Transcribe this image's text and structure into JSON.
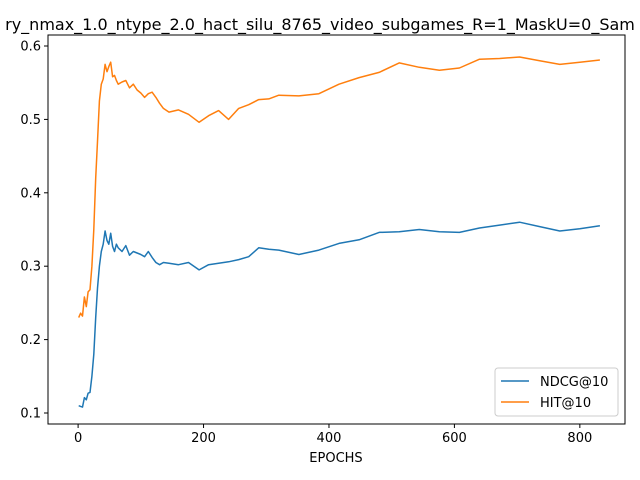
{
  "chart_data": {
    "type": "line",
    "title": "ry_nmax_1.0_ntype_2.0_hact_silu_8765_video_subgames_R=1_MaskU=0_Sam",
    "xlabel": "EPOCHS",
    "ylabel": "",
    "xlim": [
      -48,
      872
    ],
    "ylim": [
      0.085,
      0.615
    ],
    "xticks": [
      0,
      200,
      400,
      600,
      800
    ],
    "yticks": [
      0.1,
      0.2,
      0.3,
      0.4,
      0.5,
      0.6
    ],
    "grid": false,
    "legend_position": "lower-right",
    "series": [
      {
        "name": "NDCG@10",
        "color": "#1f77b4",
        "x": [
          1,
          4,
          7,
          10,
          13,
          16,
          19,
          22,
          25,
          28,
          31,
          34,
          37,
          40,
          43,
          46,
          49,
          52,
          55,
          58,
          61,
          64,
          70,
          76,
          82,
          88,
          94,
          100,
          106,
          112,
          118,
          124,
          130,
          136,
          145,
          160,
          176,
          193,
          208,
          224,
          240,
          256,
          272,
          288,
          304,
          320,
          352,
          384,
          416,
          448,
          480,
          512,
          544,
          576,
          608,
          640,
          672,
          704,
          736,
          768,
          800,
          832
        ],
        "y": [
          0.11,
          0.109,
          0.108,
          0.121,
          0.118,
          0.127,
          0.128,
          0.15,
          0.18,
          0.23,
          0.27,
          0.3,
          0.32,
          0.33,
          0.348,
          0.335,
          0.33,
          0.345,
          0.327,
          0.32,
          0.33,
          0.325,
          0.32,
          0.328,
          0.315,
          0.32,
          0.318,
          0.316,
          0.313,
          0.32,
          0.312,
          0.305,
          0.302,
          0.305,
          0.304,
          0.302,
          0.305,
          0.295,
          0.302,
          0.304,
          0.306,
          0.309,
          0.313,
          0.325,
          0.323,
          0.322,
          0.316,
          0.322,
          0.331,
          0.336,
          0.346,
          0.347,
          0.35,
          0.347,
          0.346,
          0.352,
          0.356,
          0.36,
          0.354,
          0.348,
          0.351,
          0.355
        ]
      },
      {
        "name": "HIT@10",
        "color": "#ff7f0e",
        "x": [
          1,
          4,
          7,
          10,
          13,
          16,
          19,
          22,
          25,
          28,
          31,
          34,
          37,
          40,
          43,
          46,
          49,
          52,
          55,
          58,
          61,
          64,
          70,
          76,
          82,
          88,
          94,
          100,
          106,
          112,
          118,
          124,
          130,
          136,
          145,
          160,
          176,
          193,
          208,
          224,
          240,
          256,
          272,
          288,
          304,
          320,
          352,
          384,
          416,
          448,
          480,
          512,
          544,
          576,
          608,
          640,
          672,
          704,
          736,
          768,
          800,
          832
        ],
        "y": [
          0.23,
          0.236,
          0.232,
          0.258,
          0.245,
          0.265,
          0.268,
          0.3,
          0.35,
          0.42,
          0.47,
          0.525,
          0.548,
          0.555,
          0.575,
          0.565,
          0.572,
          0.578,
          0.558,
          0.56,
          0.553,
          0.548,
          0.551,
          0.553,
          0.543,
          0.548,
          0.54,
          0.536,
          0.53,
          0.535,
          0.537,
          0.53,
          0.522,
          0.515,
          0.51,
          0.513,
          0.507,
          0.496,
          0.505,
          0.512,
          0.5,
          0.515,
          0.52,
          0.527,
          0.528,
          0.533,
          0.532,
          0.535,
          0.548,
          0.557,
          0.564,
          0.577,
          0.571,
          0.567,
          0.57,
          0.582,
          0.583,
          0.585,
          0.58,
          0.575,
          0.578,
          0.581
        ]
      }
    ]
  }
}
